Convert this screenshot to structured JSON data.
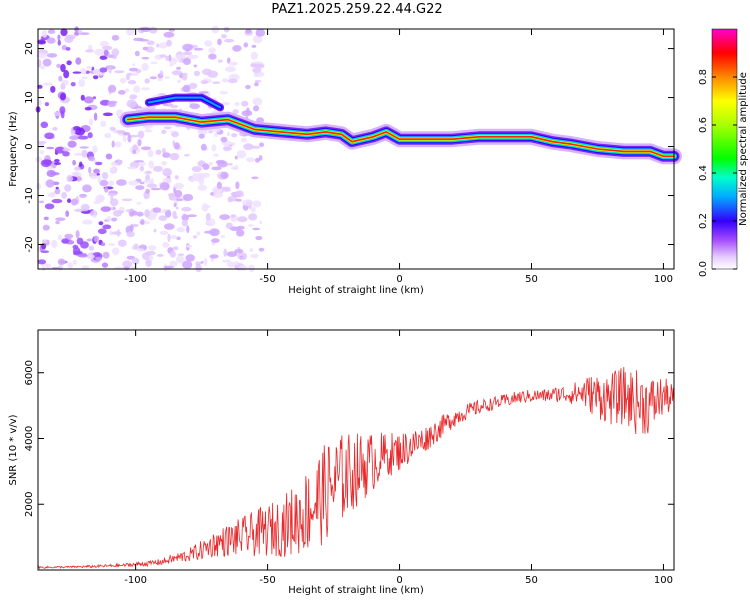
{
  "title": "PAZ1.2025.259.22.44.G22",
  "chart_data": [
    {
      "type": "heatmap",
      "xlabel": "Height of straight line (km)",
      "ylabel": "Frequency (Hz)",
      "xlim": [
        -137,
        104
      ],
      "ylim": [
        -25,
        24
      ],
      "xticks": [
        -100,
        -50,
        0,
        50,
        100
      ],
      "yticks": [
        -20,
        -10,
        0,
        10,
        20
      ],
      "grid": false,
      "colorbar": {
        "label": "Normalized spectral amplitude",
        "range": [
          0,
          1
        ],
        "ticks": [
          0.0,
          0.2,
          0.4,
          0.6,
          0.8
        ],
        "colormap": "rainbow"
      },
      "ridge": {
        "description_points_x": [
          -103,
          -95,
          -85,
          -75,
          -65,
          -55,
          -45,
          -35,
          -28,
          -22,
          -18,
          -10,
          -5,
          0,
          10,
          20,
          30,
          40,
          50,
          58,
          65,
          75,
          85,
          95,
          100,
          104
        ],
        "description_points_y": [
          5.5,
          6,
          6,
          5,
          5.5,
          3.5,
          3,
          2.5,
          3,
          2.5,
          1,
          2,
          3,
          1.5,
          1.5,
          1.5,
          2,
          2,
          2,
          1,
          0.5,
          -0.5,
          -1,
          -1,
          -2,
          -2
        ]
      }
    },
    {
      "type": "line",
      "xlabel": "Height of straight line (km)",
      "ylabel": "SNR (10 * v/v)",
      "xlim": [
        -137,
        104
      ],
      "ylim": [
        0,
        7300
      ],
      "xticks": [
        -100,
        -50,
        0,
        50,
        100
      ],
      "yticks": [
        2000,
        4000,
        6000
      ],
      "grid": false,
      "line_color": "#e8282a",
      "series": [
        {
          "x": [
            -137,
            -125,
            -115,
            -105,
            -95,
            -90,
            -85,
            -80,
            -75,
            -70,
            -65,
            -60,
            -55,
            -50,
            -45,
            -40,
            -35,
            -30,
            -25,
            -20,
            -15,
            -10,
            -5,
            0,
            5,
            10,
            15,
            20,
            25,
            30,
            35,
            40,
            45,
            50,
            55,
            60,
            65,
            70,
            75,
            80,
            85,
            90,
            95,
            100,
            104
          ],
          "values": [
            80,
            90,
            110,
            140,
            200,
            250,
            350,
            450,
            600,
            800,
            900,
            1000,
            1100,
            1200,
            1300,
            1500,
            1800,
            2200,
            2600,
            2900,
            3100,
            3300,
            3500,
            3600,
            3800,
            4000,
            4300,
            4600,
            4800,
            4950,
            5050,
            5150,
            5250,
            5300,
            5300,
            5350,
            5350,
            5400,
            5300,
            5200,
            5300,
            5100,
            5000,
            5300,
            5200
          ],
          "noise_amplitude": [
            30,
            30,
            40,
            50,
            80,
            100,
            150,
            200,
            300,
            400,
            500,
            600,
            700,
            800,
            900,
            1100,
            1300,
            1500,
            1500,
            1300,
            1100,
            900,
            700,
            600,
            500,
            400,
            350,
            300,
            250,
            220,
            200,
            200,
            200,
            200,
            200,
            250,
            300,
            500,
            700,
            800,
            900,
            1000,
            900,
            600,
            400
          ]
        }
      ]
    }
  ]
}
